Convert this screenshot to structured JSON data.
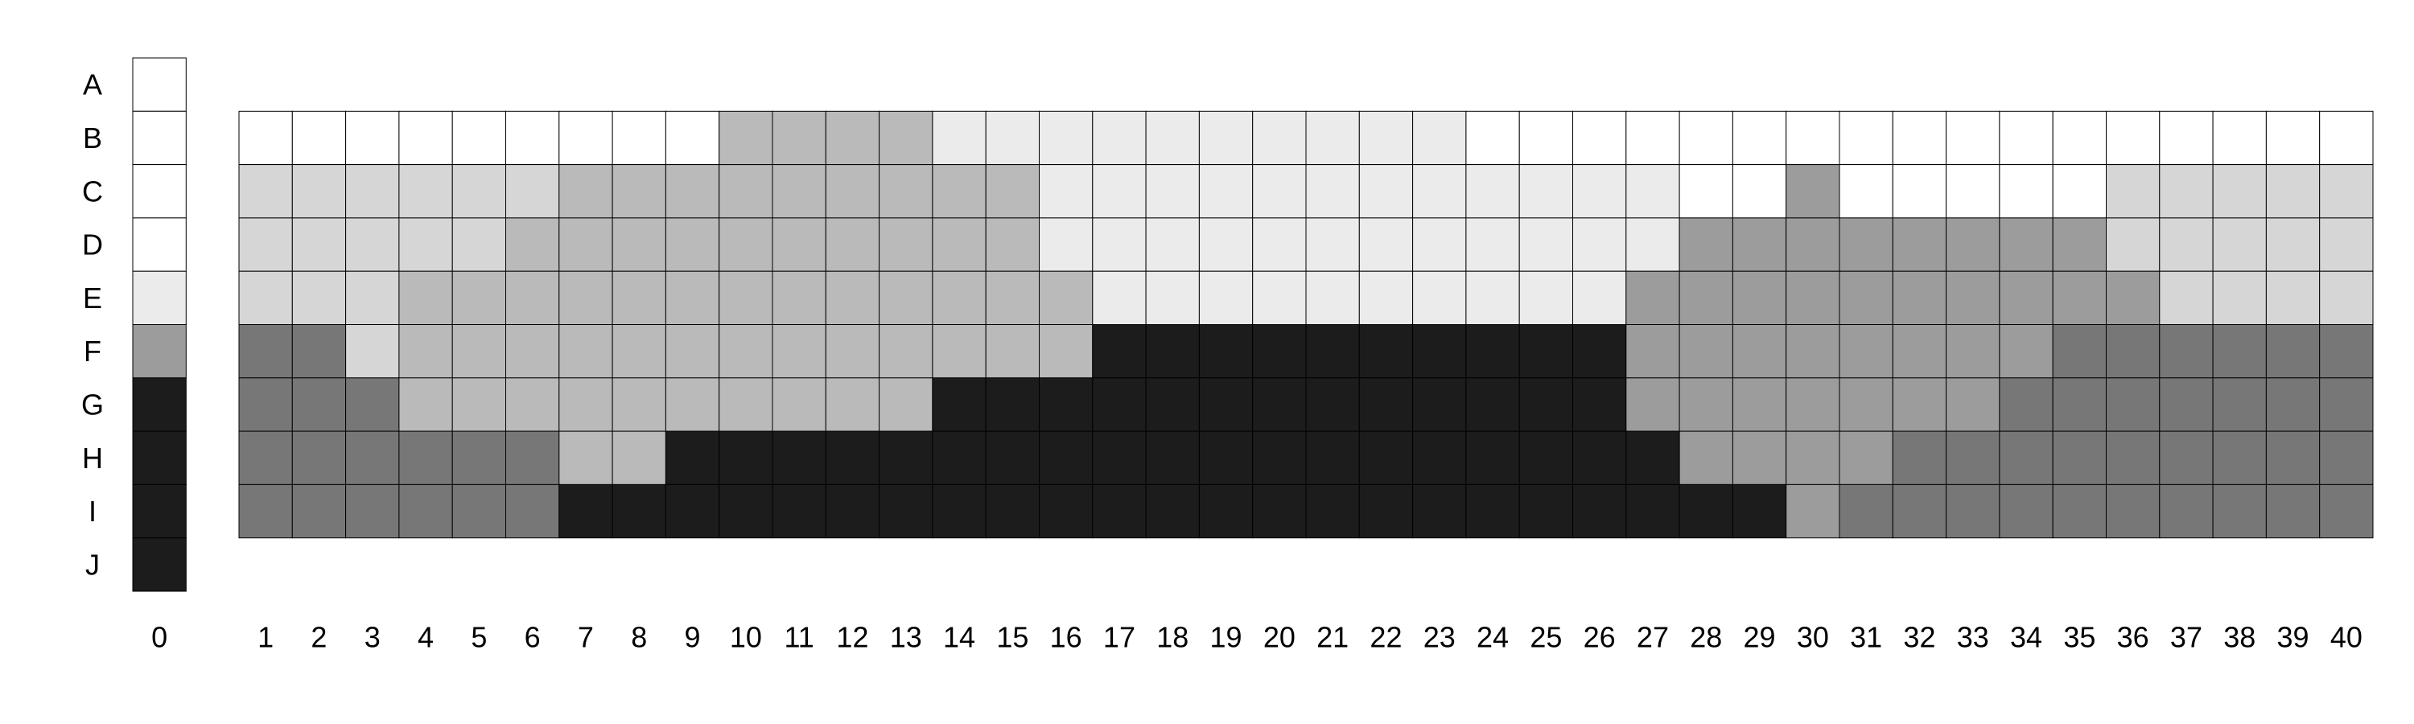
{
  "colors": {
    "0": "#ffffff",
    "1": "#ebebeb",
    "2": "#d6d6d6",
    "3": "#bababa",
    "4": "#9c9c9c",
    "5": "#777777",
    "6": "#1c1c1c",
    "grid": "#000000"
  },
  "chart_data": {
    "type": "heatmap",
    "title": "",
    "xlabel": "",
    "ylabel": "",
    "rows": [
      "A",
      "B",
      "C",
      "D",
      "E",
      "F",
      "G",
      "H",
      "I",
      "J"
    ],
    "columns": [
      "1",
      "2",
      "3",
      "4",
      "5",
      "6",
      "7",
      "8",
      "9",
      "10",
      "11",
      "12",
      "13",
      "14",
      "15",
      "16",
      "17",
      "18",
      "19",
      "20",
      "21",
      "22",
      "23",
      "24",
      "25",
      "26",
      "27",
      "28",
      "29",
      "30",
      "31",
      "32",
      "33",
      "34",
      "35",
      "36",
      "37",
      "38",
      "39",
      "40"
    ],
    "reference_column_label": "0",
    "reference_column": [
      0,
      0,
      0,
      0,
      1,
      4,
      6,
      6,
      6,
      6
    ],
    "grid_rows": [
      "B",
      "C",
      "D",
      "E",
      "F",
      "G",
      "H",
      "I"
    ],
    "values": [
      [
        0,
        0,
        0,
        0,
        0,
        0,
        0,
        0,
        0,
        3,
        3,
        3,
        3,
        1,
        1,
        1,
        1,
        1,
        1,
        1,
        1,
        1,
        1,
        0,
        0,
        0,
        0,
        0,
        0,
        0,
        0,
        0,
        0,
        0,
        0,
        0,
        0,
        0,
        0,
        0
      ],
      [
        2,
        2,
        2,
        2,
        2,
        2,
        3,
        3,
        3,
        3,
        3,
        3,
        3,
        3,
        3,
        1,
        1,
        1,
        1,
        1,
        1,
        1,
        1,
        1,
        1,
        1,
        1,
        0,
        0,
        4,
        0,
        0,
        0,
        0,
        0,
        2,
        2,
        2,
        2,
        2
      ],
      [
        2,
        2,
        2,
        2,
        2,
        3,
        3,
        3,
        3,
        3,
        3,
        3,
        3,
        3,
        3,
        1,
        1,
        1,
        1,
        1,
        1,
        1,
        1,
        1,
        1,
        1,
        1,
        4,
        4,
        4,
        4,
        4,
        4,
        4,
        4,
        2,
        2,
        2,
        2,
        2
      ],
      [
        2,
        2,
        2,
        3,
        3,
        3,
        3,
        3,
        3,
        3,
        3,
        3,
        3,
        3,
        3,
        3,
        1,
        1,
        1,
        1,
        1,
        1,
        1,
        1,
        1,
        1,
        4,
        4,
        4,
        4,
        4,
        4,
        4,
        4,
        4,
        4,
        2,
        2,
        2,
        2
      ],
      [
        5,
        5,
        2,
        3,
        3,
        3,
        3,
        3,
        3,
        3,
        3,
        3,
        3,
        3,
        3,
        3,
        6,
        6,
        6,
        6,
        6,
        6,
        6,
        6,
        6,
        6,
        4,
        4,
        4,
        4,
        4,
        4,
        4,
        4,
        5,
        5,
        5,
        5,
        5,
        5
      ],
      [
        5,
        5,
        5,
        3,
        3,
        3,
        3,
        3,
        3,
        3,
        3,
        3,
        3,
        6,
        6,
        6,
        6,
        6,
        6,
        6,
        6,
        6,
        6,
        6,
        6,
        6,
        4,
        4,
        4,
        4,
        4,
        4,
        4,
        5,
        5,
        5,
        5,
        5,
        5,
        5
      ],
      [
        5,
        5,
        5,
        5,
        5,
        5,
        3,
        3,
        6,
        6,
        6,
        6,
        6,
        6,
        6,
        6,
        6,
        6,
        6,
        6,
        6,
        6,
        6,
        6,
        6,
        6,
        6,
        4,
        4,
        4,
        4,
        5,
        5,
        5,
        5,
        5,
        5,
        5,
        5,
        5
      ],
      [
        5,
        5,
        5,
        5,
        5,
        5,
        6,
        6,
        6,
        6,
        6,
        6,
        6,
        6,
        6,
        6,
        6,
        6,
        6,
        6,
        6,
        6,
        6,
        6,
        6,
        6,
        6,
        6,
        6,
        4,
        5,
        5,
        5,
        5,
        5,
        5,
        5,
        5,
        5,
        5
      ]
    ]
  }
}
